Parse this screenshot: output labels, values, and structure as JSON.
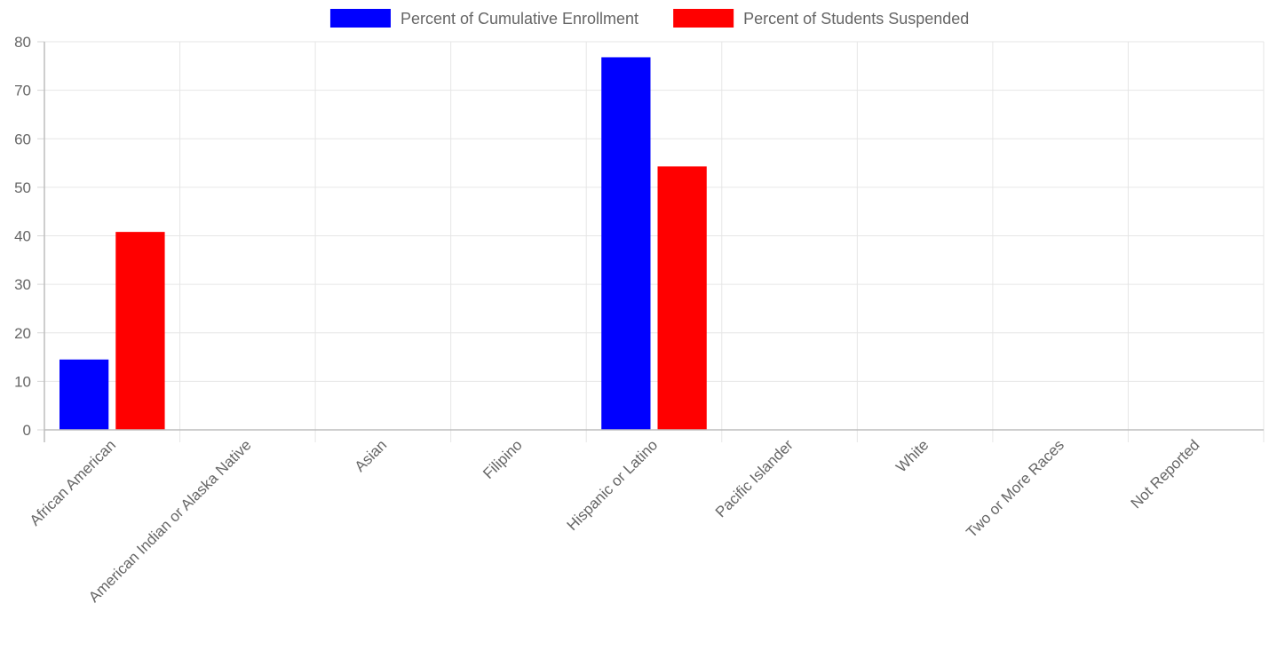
{
  "chart_data": {
    "type": "bar",
    "categories": [
      "African American",
      "American Indian or Alaska Native",
      "Asian",
      "Filipino",
      "Hispanic or Latino",
      "Pacific Islander",
      "White",
      "Two or More Races",
      "Not Reported"
    ],
    "series": [
      {
        "name": "Percent of Cumulative Enrollment",
        "color": "#0000ff",
        "values": [
          14.5,
          0,
          0,
          0,
          76.8,
          0,
          0,
          0,
          0
        ]
      },
      {
        "name": "Percent of Students Suspended",
        "color": "#ff0000",
        "values": [
          40.8,
          0,
          0,
          0,
          54.3,
          0,
          0,
          0,
          0
        ]
      }
    ],
    "ylim": [
      0,
      80
    ],
    "yticks": [
      0,
      10,
      20,
      30,
      40,
      50,
      60,
      70,
      80
    ],
    "grid": true,
    "legend_position": "top",
    "title": "",
    "xlabel": "",
    "ylabel": ""
  }
}
